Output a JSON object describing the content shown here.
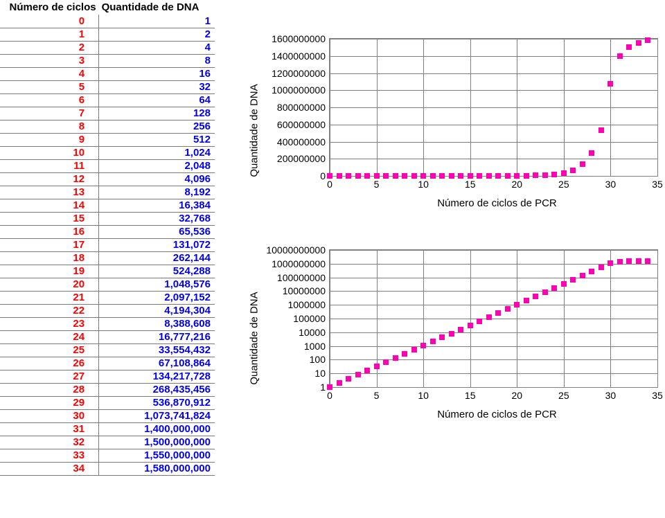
{
  "table": {
    "header_cycles": "Número de ciclos",
    "header_dna": "Quantidade de DNA",
    "rows": [
      {
        "c": "0",
        "v": "1"
      },
      {
        "c": "1",
        "v": "2"
      },
      {
        "c": "2",
        "v": "4"
      },
      {
        "c": "3",
        "v": "8"
      },
      {
        "c": "4",
        "v": "16"
      },
      {
        "c": "5",
        "v": "32"
      },
      {
        "c": "6",
        "v": "64"
      },
      {
        "c": "7",
        "v": "128"
      },
      {
        "c": "8",
        "v": "256"
      },
      {
        "c": "9",
        "v": "512"
      },
      {
        "c": "10",
        "v": "1,024"
      },
      {
        "c": "11",
        "v": "2,048"
      },
      {
        "c": "12",
        "v": "4,096"
      },
      {
        "c": "13",
        "v": "8,192"
      },
      {
        "c": "14",
        "v": "16,384"
      },
      {
        "c": "15",
        "v": "32,768"
      },
      {
        "c": "16",
        "v": "65,536"
      },
      {
        "c": "17",
        "v": "131,072"
      },
      {
        "c": "18",
        "v": "262,144"
      },
      {
        "c": "19",
        "v": "524,288"
      },
      {
        "c": "20",
        "v": "1,048,576"
      },
      {
        "c": "21",
        "v": "2,097,152"
      },
      {
        "c": "22",
        "v": "4,194,304"
      },
      {
        "c": "23",
        "v": "8,388,608"
      },
      {
        "c": "24",
        "v": "16,777,216"
      },
      {
        "c": "25",
        "v": "33,554,432"
      },
      {
        "c": "26",
        "v": "67,108,864"
      },
      {
        "c": "27",
        "v": "134,217,728"
      },
      {
        "c": "28",
        "v": "268,435,456"
      },
      {
        "c": "29",
        "v": "536,870,912"
      },
      {
        "c": "30",
        "v": "1,073,741,824"
      },
      {
        "c": "31",
        "v": "1,400,000,000"
      },
      {
        "c": "32",
        "v": "1,500,000,000"
      },
      {
        "c": "33",
        "v": "1,550,000,000"
      },
      {
        "c": "34",
        "v": "1,580,000,000"
      }
    ],
    "cycle_color": "#ff0000",
    "dna_color": "#0000ee",
    "border_color": "#7a7a7a",
    "font_size": 15
  },
  "chart_linear": {
    "type": "scatter",
    "y_axis_label": "Quantidade de DNA",
    "x_axis_label": "Número de ciclos de PCR",
    "x_min": 0,
    "x_max": 35,
    "x_step": 5,
    "x_ticks": [
      0,
      5,
      10,
      15,
      20,
      25,
      30,
      35
    ],
    "y_min": 0,
    "y_max": 1600000000,
    "y_ticks": [
      0,
      200000000,
      400000000,
      600000000,
      800000000,
      1000000000,
      1200000000,
      1400000000,
      1600000000
    ],
    "y_tick_labels": [
      "0",
      "200000000",
      "400000000",
      "600000000",
      "800000000",
      "1000000000",
      "1200000000",
      "1400000000",
      "1600000000"
    ],
    "marker_color": "#ff00b3",
    "marker_size": 8,
    "marker_shape": "square",
    "background_color": "#ffffff",
    "grid_color": "#808080",
    "axis_label_fontsize": 15,
    "tick_fontsize": 14,
    "data": [
      {
        "x": 0,
        "y": 1
      },
      {
        "x": 1,
        "y": 2
      },
      {
        "x": 2,
        "y": 4
      },
      {
        "x": 3,
        "y": 8
      },
      {
        "x": 4,
        "y": 16
      },
      {
        "x": 5,
        "y": 32
      },
      {
        "x": 6,
        "y": 64
      },
      {
        "x": 7,
        "y": 128
      },
      {
        "x": 8,
        "y": 256
      },
      {
        "x": 9,
        "y": 512
      },
      {
        "x": 10,
        "y": 1024
      },
      {
        "x": 11,
        "y": 2048
      },
      {
        "x": 12,
        "y": 4096
      },
      {
        "x": 13,
        "y": 8192
      },
      {
        "x": 14,
        "y": 16384
      },
      {
        "x": 15,
        "y": 32768
      },
      {
        "x": 16,
        "y": 65536
      },
      {
        "x": 17,
        "y": 131072
      },
      {
        "x": 18,
        "y": 262144
      },
      {
        "x": 19,
        "y": 524288
      },
      {
        "x": 20,
        "y": 1048576
      },
      {
        "x": 21,
        "y": 2097152
      },
      {
        "x": 22,
        "y": 4194304
      },
      {
        "x": 23,
        "y": 8388608
      },
      {
        "x": 24,
        "y": 16777216
      },
      {
        "x": 25,
        "y": 33554432
      },
      {
        "x": 26,
        "y": 67108864
      },
      {
        "x": 27,
        "y": 134217728
      },
      {
        "x": 28,
        "y": 268435456
      },
      {
        "x": 29,
        "y": 536870912
      },
      {
        "x": 30,
        "y": 1073741824
      },
      {
        "x": 31,
        "y": 1400000000
      },
      {
        "x": 32,
        "y": 1500000000
      },
      {
        "x": 33,
        "y": 1550000000
      },
      {
        "x": 34,
        "y": 1580000000
      }
    ]
  },
  "chart_log": {
    "type": "scatter",
    "y_axis_label": "Quantidade de DNA",
    "x_axis_label": "Número de ciclos de PCR",
    "x_min": 0,
    "x_max": 35,
    "x_step": 5,
    "x_ticks": [
      0,
      5,
      10,
      15,
      20,
      25,
      30,
      35
    ],
    "y_scale": "log",
    "y_min_exp": 0,
    "y_max_exp": 10,
    "y_tick_labels": [
      "1",
      "10",
      "100",
      "1000",
      "10000",
      "100000",
      "1000000",
      "10000000",
      "100000000",
      "1000000000",
      "10000000000"
    ],
    "marker_color": "#ff00b3",
    "marker_size": 8,
    "marker_shape": "square",
    "background_color": "#ffffff",
    "grid_color": "#808080",
    "axis_label_fontsize": 15,
    "tick_fontsize": 14,
    "data": [
      {
        "x": 0,
        "y": 1
      },
      {
        "x": 1,
        "y": 2
      },
      {
        "x": 2,
        "y": 4
      },
      {
        "x": 3,
        "y": 8
      },
      {
        "x": 4,
        "y": 16
      },
      {
        "x": 5,
        "y": 32
      },
      {
        "x": 6,
        "y": 64
      },
      {
        "x": 7,
        "y": 128
      },
      {
        "x": 8,
        "y": 256
      },
      {
        "x": 9,
        "y": 512
      },
      {
        "x": 10,
        "y": 1024
      },
      {
        "x": 11,
        "y": 2048
      },
      {
        "x": 12,
        "y": 4096
      },
      {
        "x": 13,
        "y": 8192
      },
      {
        "x": 14,
        "y": 16384
      },
      {
        "x": 15,
        "y": 32768
      },
      {
        "x": 16,
        "y": 65536
      },
      {
        "x": 17,
        "y": 131072
      },
      {
        "x": 18,
        "y": 262144
      },
      {
        "x": 19,
        "y": 524288
      },
      {
        "x": 20,
        "y": 1048576
      },
      {
        "x": 21,
        "y": 2097152
      },
      {
        "x": 22,
        "y": 4194304
      },
      {
        "x": 23,
        "y": 8388608
      },
      {
        "x": 24,
        "y": 16777216
      },
      {
        "x": 25,
        "y": 33554432
      },
      {
        "x": 26,
        "y": 67108864
      },
      {
        "x": 27,
        "y": 134217728
      },
      {
        "x": 28,
        "y": 268435456
      },
      {
        "x": 29,
        "y": 536870912
      },
      {
        "x": 30,
        "y": 1073741824
      },
      {
        "x": 31,
        "y": 1400000000
      },
      {
        "x": 32,
        "y": 1500000000
      },
      {
        "x": 33,
        "y": 1550000000
      },
      {
        "x": 34,
        "y": 1580000000
      }
    ]
  }
}
